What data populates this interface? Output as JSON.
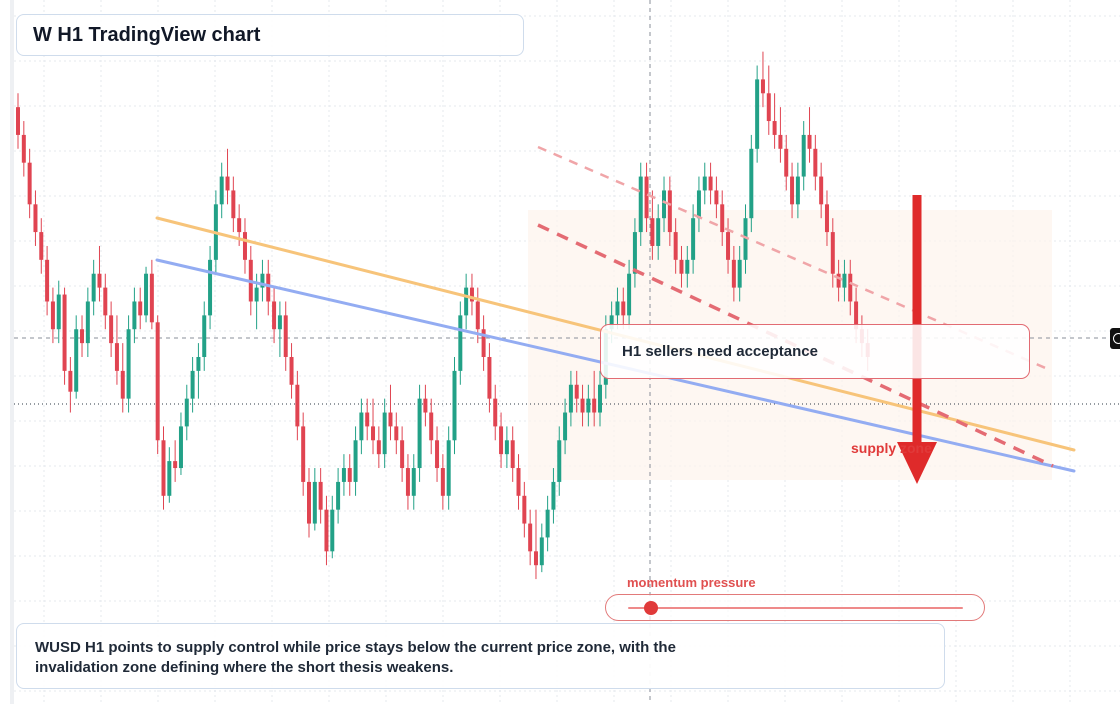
{
  "header": {
    "title": "W H1 TradingView chart"
  },
  "signal_card": {
    "text": "H1 sellers need acceptance"
  },
  "zone_label": {
    "text": "supply zone"
  },
  "momentum": {
    "label": "momentum pressure",
    "level": 0.07
  },
  "summary": {
    "text": "WUSD H1 points to supply control while price stays below the current price zone, with the invalidation zone defining where the short thesis weakens."
  },
  "colors": {
    "bullish": "#22a187",
    "bearish": "#e04451",
    "orange_trendline": "#f7c47a",
    "blue_trendline": "#93acf2",
    "resistance_dashed": "#e46b73",
    "arrow": "#df2a2a"
  },
  "icons": {
    "edge_marker": "crosshair-icon"
  },
  "chart_data": {
    "type": "candlestick",
    "title": "W H1 TradingView chart",
    "timeframe": "H1",
    "xlabel": "",
    "ylabel": "",
    "ylim": [
      0,
      100
    ],
    "grid": true,
    "candles": [
      {
        "o": 86,
        "h": 88,
        "l": 80,
        "c": 82
      },
      {
        "o": 82,
        "h": 84,
        "l": 76,
        "c": 78
      },
      {
        "o": 78,
        "h": 80,
        "l": 70,
        "c": 72
      },
      {
        "o": 72,
        "h": 74,
        "l": 66,
        "c": 68
      },
      {
        "o": 68,
        "h": 70,
        "l": 62,
        "c": 64
      },
      {
        "o": 64,
        "h": 66,
        "l": 56,
        "c": 58
      },
      {
        "o": 58,
        "h": 60,
        "l": 52,
        "c": 54
      },
      {
        "o": 54,
        "h": 61,
        "l": 52,
        "c": 59
      },
      {
        "o": 59,
        "h": 60,
        "l": 46,
        "c": 48
      },
      {
        "o": 48,
        "h": 50,
        "l": 42,
        "c": 45
      },
      {
        "o": 45,
        "h": 56,
        "l": 44,
        "c": 54
      },
      {
        "o": 54,
        "h": 56,
        "l": 50,
        "c": 52
      },
      {
        "o": 52,
        "h": 60,
        "l": 50,
        "c": 58
      },
      {
        "o": 58,
        "h": 64,
        "l": 56,
        "c": 62
      },
      {
        "o": 62,
        "h": 66,
        "l": 58,
        "c": 60
      },
      {
        "o": 60,
        "h": 62,
        "l": 54,
        "c": 56
      },
      {
        "o": 56,
        "h": 58,
        "l": 50,
        "c": 52
      },
      {
        "o": 52,
        "h": 56,
        "l": 46,
        "c": 48
      },
      {
        "o": 48,
        "h": 52,
        "l": 42,
        "c": 44
      },
      {
        "o": 44,
        "h": 56,
        "l": 42,
        "c": 54
      },
      {
        "o": 54,
        "h": 60,
        "l": 52,
        "c": 58
      },
      {
        "o": 58,
        "h": 60,
        "l": 54,
        "c": 56
      },
      {
        "o": 56,
        "h": 63,
        "l": 55,
        "c": 62
      },
      {
        "o": 62,
        "h": 64,
        "l": 54,
        "c": 55
      },
      {
        "o": 55,
        "h": 56,
        "l": 36,
        "c": 38
      },
      {
        "o": 38,
        "h": 40,
        "l": 28,
        "c": 30
      },
      {
        "o": 30,
        "h": 37,
        "l": 29,
        "c": 35
      },
      {
        "o": 35,
        "h": 38,
        "l": 32,
        "c": 34
      },
      {
        "o": 34,
        "h": 42,
        "l": 33,
        "c": 40
      },
      {
        "o": 40,
        "h": 46,
        "l": 38,
        "c": 44
      },
      {
        "o": 44,
        "h": 50,
        "l": 42,
        "c": 48
      },
      {
        "o": 48,
        "h": 52,
        "l": 44,
        "c": 50
      },
      {
        "o": 50,
        "h": 58,
        "l": 48,
        "c": 56
      },
      {
        "o": 56,
        "h": 66,
        "l": 54,
        "c": 64
      },
      {
        "o": 64,
        "h": 74,
        "l": 62,
        "c": 72
      },
      {
        "o": 72,
        "h": 78,
        "l": 70,
        "c": 76
      },
      {
        "o": 76,
        "h": 80,
        "l": 72,
        "c": 74
      },
      {
        "o": 74,
        "h": 76,
        "l": 68,
        "c": 70
      },
      {
        "o": 70,
        "h": 72,
        "l": 66,
        "c": 68
      },
      {
        "o": 68,
        "h": 70,
        "l": 62,
        "c": 64
      },
      {
        "o": 64,
        "h": 66,
        "l": 56,
        "c": 58
      },
      {
        "o": 58,
        "h": 62,
        "l": 54,
        "c": 60
      },
      {
        "o": 60,
        "h": 64,
        "l": 58,
        "c": 62
      },
      {
        "o": 62,
        "h": 64,
        "l": 56,
        "c": 58
      },
      {
        "o": 58,
        "h": 60,
        "l": 52,
        "c": 54
      },
      {
        "o": 54,
        "h": 58,
        "l": 50,
        "c": 56
      },
      {
        "o": 56,
        "h": 58,
        "l": 48,
        "c": 50
      },
      {
        "o": 50,
        "h": 52,
        "l": 44,
        "c": 46
      },
      {
        "o": 46,
        "h": 48,
        "l": 38,
        "c": 40
      },
      {
        "o": 40,
        "h": 42,
        "l": 30,
        "c": 32
      },
      {
        "o": 32,
        "h": 34,
        "l": 24,
        "c": 26
      },
      {
        "o": 26,
        "h": 34,
        "l": 25,
        "c": 32
      },
      {
        "o": 32,
        "h": 34,
        "l": 26,
        "c": 28
      },
      {
        "o": 28,
        "h": 30,
        "l": 20,
        "c": 22
      },
      {
        "o": 22,
        "h": 30,
        "l": 21,
        "c": 28
      },
      {
        "o": 28,
        "h": 34,
        "l": 26,
        "c": 32
      },
      {
        "o": 32,
        "h": 36,
        "l": 30,
        "c": 34
      },
      {
        "o": 34,
        "h": 36,
        "l": 30,
        "c": 32
      },
      {
        "o": 32,
        "h": 40,
        "l": 30,
        "c": 38
      },
      {
        "o": 38,
        "h": 44,
        "l": 36,
        "c": 42
      },
      {
        "o": 42,
        "h": 44,
        "l": 38,
        "c": 40
      },
      {
        "o": 40,
        "h": 44,
        "l": 36,
        "c": 38
      },
      {
        "o": 38,
        "h": 40,
        "l": 34,
        "c": 36
      },
      {
        "o": 36,
        "h": 44,
        "l": 34,
        "c": 42
      },
      {
        "o": 42,
        "h": 46,
        "l": 38,
        "c": 40
      },
      {
        "o": 40,
        "h": 42,
        "l": 36,
        "c": 38
      },
      {
        "o": 38,
        "h": 40,
        "l": 32,
        "c": 34
      },
      {
        "o": 34,
        "h": 36,
        "l": 28,
        "c": 30
      },
      {
        "o": 30,
        "h": 36,
        "l": 28,
        "c": 34
      },
      {
        "o": 34,
        "h": 46,
        "l": 32,
        "c": 44
      },
      {
        "o": 44,
        "h": 46,
        "l": 40,
        "c": 42
      },
      {
        "o": 42,
        "h": 44,
        "l": 36,
        "c": 38
      },
      {
        "o": 38,
        "h": 40,
        "l": 32,
        "c": 34
      },
      {
        "o": 34,
        "h": 36,
        "l": 28,
        "c": 30
      },
      {
        "o": 30,
        "h": 40,
        "l": 28,
        "c": 38
      },
      {
        "o": 38,
        "h": 50,
        "l": 36,
        "c": 48
      },
      {
        "o": 48,
        "h": 58,
        "l": 46,
        "c": 56
      },
      {
        "o": 56,
        "h": 62,
        "l": 54,
        "c": 60
      },
      {
        "o": 60,
        "h": 62,
        "l": 56,
        "c": 58
      },
      {
        "o": 58,
        "h": 60,
        "l": 52,
        "c": 54
      },
      {
        "o": 54,
        "h": 56,
        "l": 48,
        "c": 50
      },
      {
        "o": 50,
        "h": 52,
        "l": 42,
        "c": 44
      },
      {
        "o": 44,
        "h": 46,
        "l": 38,
        "c": 40
      },
      {
        "o": 40,
        "h": 42,
        "l": 34,
        "c": 36
      },
      {
        "o": 36,
        "h": 40,
        "l": 34,
        "c": 38
      },
      {
        "o": 38,
        "h": 40,
        "l": 32,
        "c": 34
      },
      {
        "o": 34,
        "h": 36,
        "l": 28,
        "c": 30
      },
      {
        "o": 30,
        "h": 32,
        "l": 24,
        "c": 26
      },
      {
        "o": 26,
        "h": 28,
        "l": 20,
        "c": 22
      },
      {
        "o": 22,
        "h": 28,
        "l": 18,
        "c": 20
      },
      {
        "o": 20,
        "h": 26,
        "l": 19,
        "c": 24
      },
      {
        "o": 24,
        "h": 30,
        "l": 22,
        "c": 28
      },
      {
        "o": 28,
        "h": 34,
        "l": 26,
        "c": 32
      },
      {
        "o": 32,
        "h": 40,
        "l": 30,
        "c": 38
      },
      {
        "o": 38,
        "h": 44,
        "l": 36,
        "c": 42
      },
      {
        "o": 42,
        "h": 48,
        "l": 40,
        "c": 46
      },
      {
        "o": 46,
        "h": 48,
        "l": 42,
        "c": 44
      },
      {
        "o": 44,
        "h": 46,
        "l": 40,
        "c": 42
      },
      {
        "o": 42,
        "h": 46,
        "l": 40,
        "c": 44
      },
      {
        "o": 44,
        "h": 48,
        "l": 40,
        "c": 42
      },
      {
        "o": 42,
        "h": 48,
        "l": 40,
        "c": 46
      },
      {
        "o": 46,
        "h": 56,
        "l": 44,
        "c": 54
      },
      {
        "o": 54,
        "h": 58,
        "l": 52,
        "c": 56
      },
      {
        "o": 56,
        "h": 60,
        "l": 54,
        "c": 58
      },
      {
        "o": 58,
        "h": 60,
        "l": 54,
        "c": 56
      },
      {
        "o": 56,
        "h": 64,
        "l": 54,
        "c": 62
      },
      {
        "o": 62,
        "h": 70,
        "l": 60,
        "c": 68
      },
      {
        "o": 68,
        "h": 78,
        "l": 66,
        "c": 76
      },
      {
        "o": 76,
        "h": 78,
        "l": 68,
        "c": 70
      },
      {
        "o": 70,
        "h": 74,
        "l": 64,
        "c": 66
      },
      {
        "o": 66,
        "h": 72,
        "l": 64,
        "c": 70
      },
      {
        "o": 70,
        "h": 76,
        "l": 68,
        "c": 74
      },
      {
        "o": 74,
        "h": 76,
        "l": 66,
        "c": 68
      },
      {
        "o": 68,
        "h": 70,
        "l": 62,
        "c": 64
      },
      {
        "o": 64,
        "h": 66,
        "l": 60,
        "c": 62
      },
      {
        "o": 62,
        "h": 66,
        "l": 60,
        "c": 64
      },
      {
        "o": 64,
        "h": 72,
        "l": 62,
        "c": 70
      },
      {
        "o": 70,
        "h": 76,
        "l": 68,
        "c": 74
      },
      {
        "o": 74,
        "h": 78,
        "l": 72,
        "c": 76
      },
      {
        "o": 76,
        "h": 78,
        "l": 72,
        "c": 74
      },
      {
        "o": 74,
        "h": 76,
        "l": 70,
        "c": 72
      },
      {
        "o": 72,
        "h": 74,
        "l": 66,
        "c": 68
      },
      {
        "o": 68,
        "h": 70,
        "l": 62,
        "c": 64
      },
      {
        "o": 64,
        "h": 66,
        "l": 58,
        "c": 60
      },
      {
        "o": 60,
        "h": 66,
        "l": 58,
        "c": 64
      },
      {
        "o": 64,
        "h": 72,
        "l": 62,
        "c": 70
      },
      {
        "o": 70,
        "h": 82,
        "l": 68,
        "c": 80
      },
      {
        "o": 80,
        "h": 92,
        "l": 78,
        "c": 90
      },
      {
        "o": 90,
        "h": 94,
        "l": 86,
        "c": 88
      },
      {
        "o": 88,
        "h": 92,
        "l": 82,
        "c": 84
      },
      {
        "o": 84,
        "h": 88,
        "l": 80,
        "c": 82
      },
      {
        "o": 82,
        "h": 86,
        "l": 78,
        "c": 80
      },
      {
        "o": 80,
        "h": 82,
        "l": 74,
        "c": 76
      },
      {
        "o": 76,
        "h": 78,
        "l": 70,
        "c": 72
      },
      {
        "o": 72,
        "h": 78,
        "l": 70,
        "c": 76
      },
      {
        "o": 76,
        "h": 84,
        "l": 74,
        "c": 82
      },
      {
        "o": 82,
        "h": 86,
        "l": 78,
        "c": 80
      },
      {
        "o": 80,
        "h": 82,
        "l": 74,
        "c": 76
      },
      {
        "o": 76,
        "h": 78,
        "l": 70,
        "c": 72
      },
      {
        "o": 72,
        "h": 74,
        "l": 66,
        "c": 68
      },
      {
        "o": 68,
        "h": 70,
        "l": 60,
        "c": 62
      },
      {
        "o": 62,
        "h": 64,
        "l": 58,
        "c": 60
      },
      {
        "o": 60,
        "h": 64,
        "l": 58,
        "c": 62
      },
      {
        "o": 62,
        "h": 64,
        "l": 56,
        "c": 58
      },
      {
        "o": 58,
        "h": 60,
        "l": 52,
        "c": 54
      },
      {
        "o": 54,
        "h": 56,
        "l": 50,
        "c": 52
      },
      {
        "o": 52,
        "h": 54,
        "l": 48,
        "c": 50
      }
    ],
    "price_level_dotted": 50.5,
    "crosshair_price": 58
  }
}
